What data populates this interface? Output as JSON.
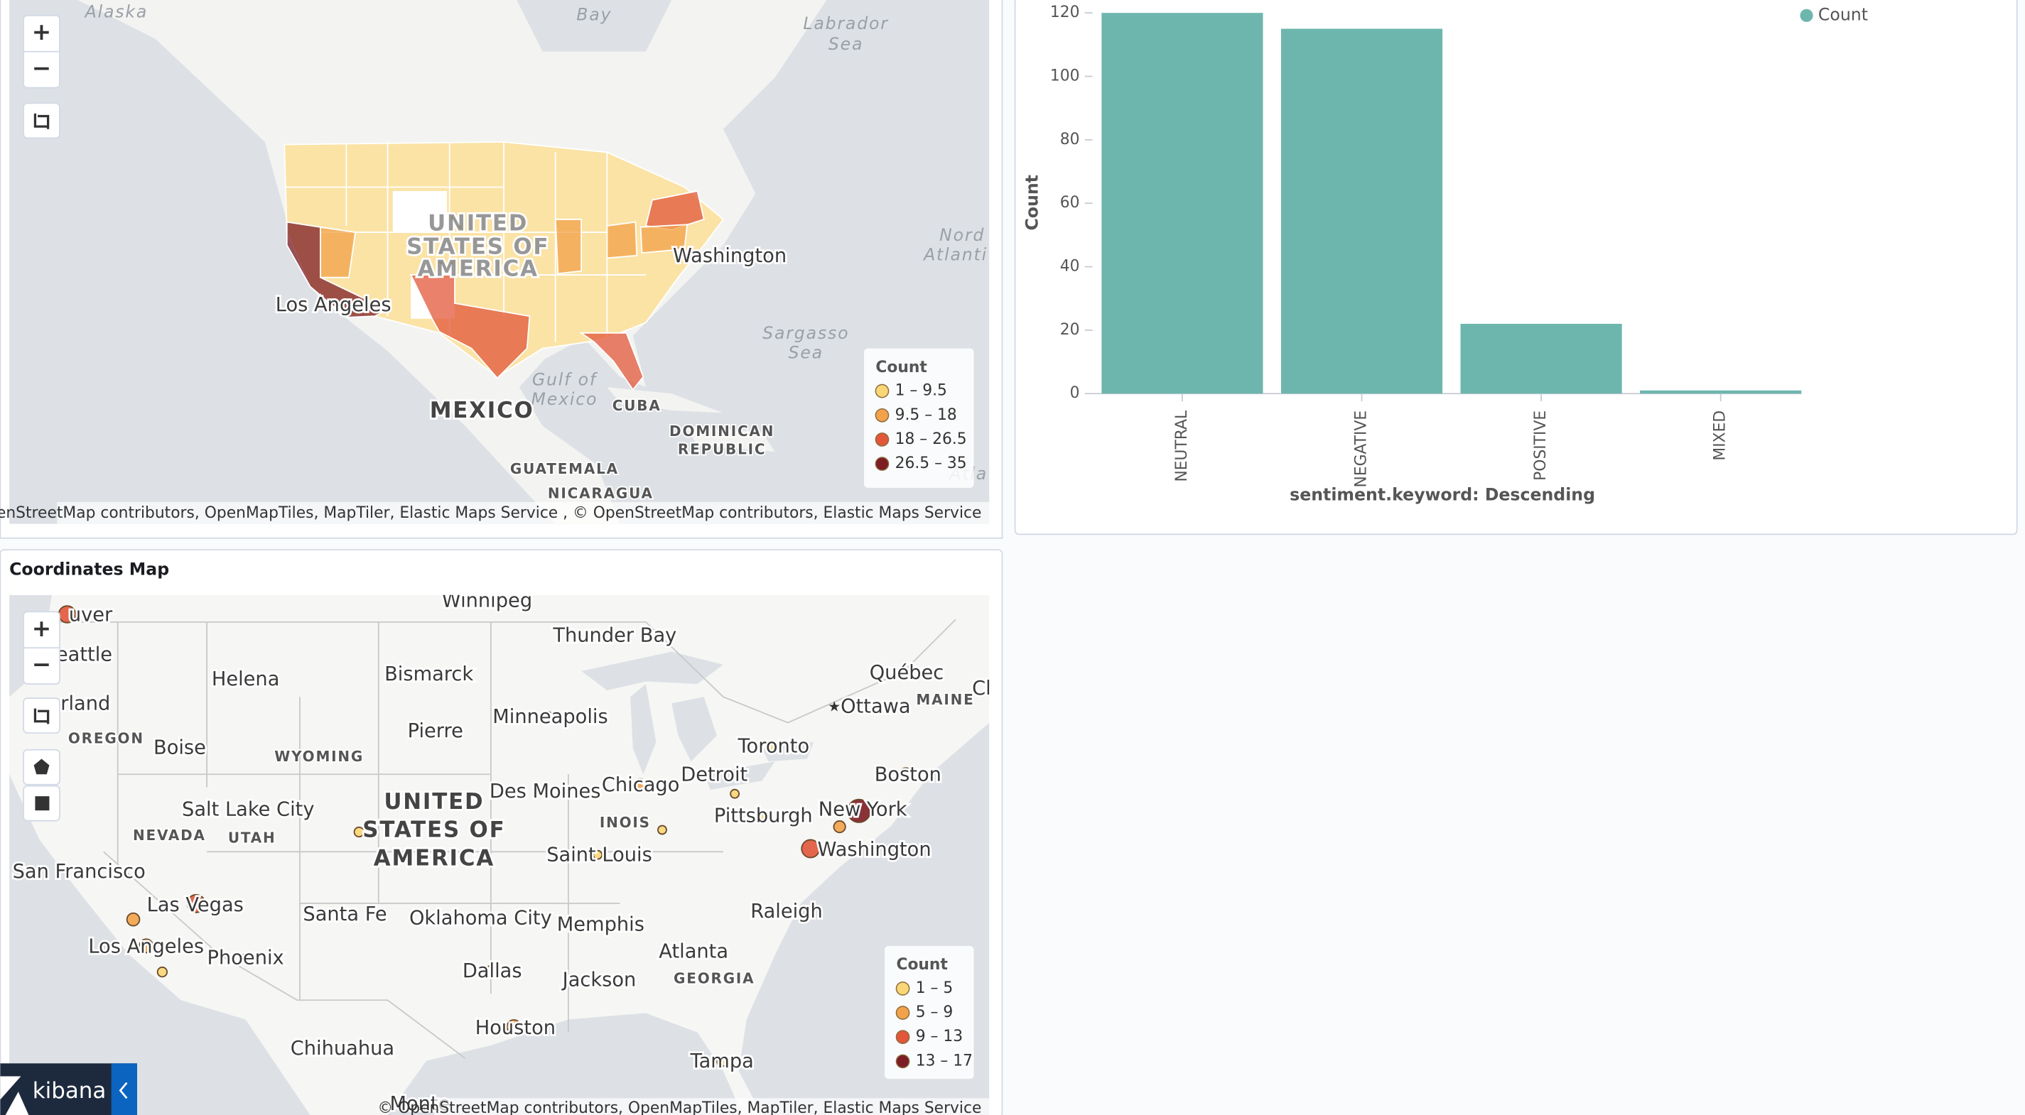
{
  "chart_data": {
    "type": "bar",
    "categories": [
      "NEUTRAL",
      "NEGATIVE",
      "POSITIVE",
      "MIXED"
    ],
    "values": [
      120,
      115,
      22,
      1
    ],
    "color": "#6db6ae",
    "ylim": [
      0,
      120
    ],
    "yticks": [
      0,
      20,
      40,
      60,
      80,
      100,
      120
    ],
    "y_label": "Count",
    "x_label": "sentiment.keyword: Descending",
    "series_name": "Count",
    "legend_position": "top-right"
  },
  "region_map": {
    "labels": [
      "Alaska",
      "Bay",
      "Labrador",
      "Sea",
      "UNITED",
      "STATES OF",
      "AMERICA",
      "Washington",
      "Los Angeles",
      "Nord",
      "Atlanti",
      "Sargasso",
      "Sea",
      "Gulf of",
      "Mexico",
      "MEXICO",
      "CUBA",
      "DOMINICAN",
      "REPUBLIC",
      "GUATEMALA",
      "NICARAGUA",
      "Atla"
    ],
    "regions": [
      {
        "count": 32
      },
      {
        "count": 20
      },
      {
        "count": 19
      },
      {
        "count": 19
      },
      {
        "count": 15
      },
      {
        "count": 14
      },
      {
        "count": 10
      },
      {
        "count": 12
      }
    ],
    "legend": {
      "title": "Count",
      "breaks": [
        1,
        9.5,
        18,
        26.5,
        35
      ],
      "labels": [
        "1 – 9.5",
        "9.5 – 18",
        "18 – 26.5",
        "26.5 – 35"
      ],
      "colors": [
        "#f9d776",
        "#f2a24a",
        "#e2573a",
        "#7d1d24"
      ]
    },
    "attribution": "© OpenStreetMap contributors, OpenMapTiles, MapTiler, Elastic Maps Service , © OpenStreetMap contributors, Elastic Maps Service"
  },
  "coordinate_map": {
    "title": "Coordinates Map",
    "labels": [
      "Winnipeg",
      "uver",
      "Thunder Bay",
      "eattle",
      "Québec",
      "Cl",
      "Helena",
      "Bismarck",
      "rland",
      "Ottawa",
      "MAINE",
      "Minneapolis",
      "Pierre",
      "OREGON",
      "Boise",
      "WYOMING",
      "Toronto",
      "Boston",
      "Detroit",
      "Chicago",
      "Des Moines",
      "Salt Lake City",
      "UNITED",
      "STATES OF",
      "AMERICA",
      "Pittsburgh",
      "New York",
      "NEVADA",
      "UTAH",
      "INOIS",
      "Washington",
      "Saint Louis",
      "San Francisco",
      "Las Vegas",
      "Oklahoma City",
      "Memphis",
      "Raleigh",
      "Santa Fe",
      "Los Angeles",
      "Phoenix",
      "Atlanta",
      "Dallas",
      "Jackson",
      "GEORGIA",
      "Houston",
      "Chihuahua",
      "Tampa",
      "Monte"
    ],
    "points": [
      {
        "lon": -123.1,
        "lat": 49.3,
        "count": 10
      },
      {
        "lon": -74,
        "lat": 40.7,
        "count": 16
      },
      {
        "lon": -77,
        "lat": 38.9,
        "count": 11
      },
      {
        "lon": -115.1,
        "lat": 36.2,
        "count": 11
      },
      {
        "lon": -118.2,
        "lat": 34.05,
        "count": 7
      },
      {
        "lon": -119,
        "lat": 35.4,
        "count": 6
      },
      {
        "lon": -95.4,
        "lat": 29.8,
        "count": 7
      },
      {
        "lon": -87.6,
        "lat": 41.9,
        "count": 6
      },
      {
        "lon": -71.1,
        "lat": 42.4,
        "count": 6
      },
      {
        "lon": -79.4,
        "lat": 43.7,
        "count": 3
      },
      {
        "lon": -93.3,
        "lat": 45,
        "count": 3
      },
      {
        "lon": -105,
        "lat": 39.7,
        "count": 3
      },
      {
        "lon": -96.8,
        "lat": 32.8,
        "count": 3
      },
      {
        "lon": -84.4,
        "lat": 33.7,
        "count": 3
      },
      {
        "lon": -112,
        "lat": 33.4,
        "count": 3
      },
      {
        "lon": -122.3,
        "lat": 47.6,
        "count": 2
      },
      {
        "lon": -82.5,
        "lat": 27.9,
        "count": 3
      },
      {
        "lon": -75.2,
        "lat": 39.95,
        "count": 5
      },
      {
        "lon": -117.2,
        "lat": 32.7,
        "count": 3
      },
      {
        "lon": -80,
        "lat": 40.4,
        "count": 3
      },
      {
        "lon": -86.2,
        "lat": 39.8,
        "count": 2
      },
      {
        "lon": -90.2,
        "lat": 38.6,
        "count": 2
      },
      {
        "lon": -78.6,
        "lat": 35.8,
        "count": 2
      },
      {
        "lon": -81.7,
        "lat": 41.5,
        "count": 2
      }
    ],
    "legend": {
      "title": "Count",
      "breaks": [
        1,
        5,
        9,
        13,
        17
      ],
      "labels": [
        "1 – 5",
        "5 – 9",
        "9 – 13",
        "13 – 17"
      ],
      "colors": [
        "#f9d776",
        "#f2a24a",
        "#e2573a",
        "#7d1d24"
      ]
    },
    "attribution": "© OpenStreetMap contributors, OpenMapTiles, MapTiler, Elastic Maps Service"
  },
  "controls": {
    "zoom_in": "+",
    "zoom_out": "−"
  },
  "brand": "kibana"
}
